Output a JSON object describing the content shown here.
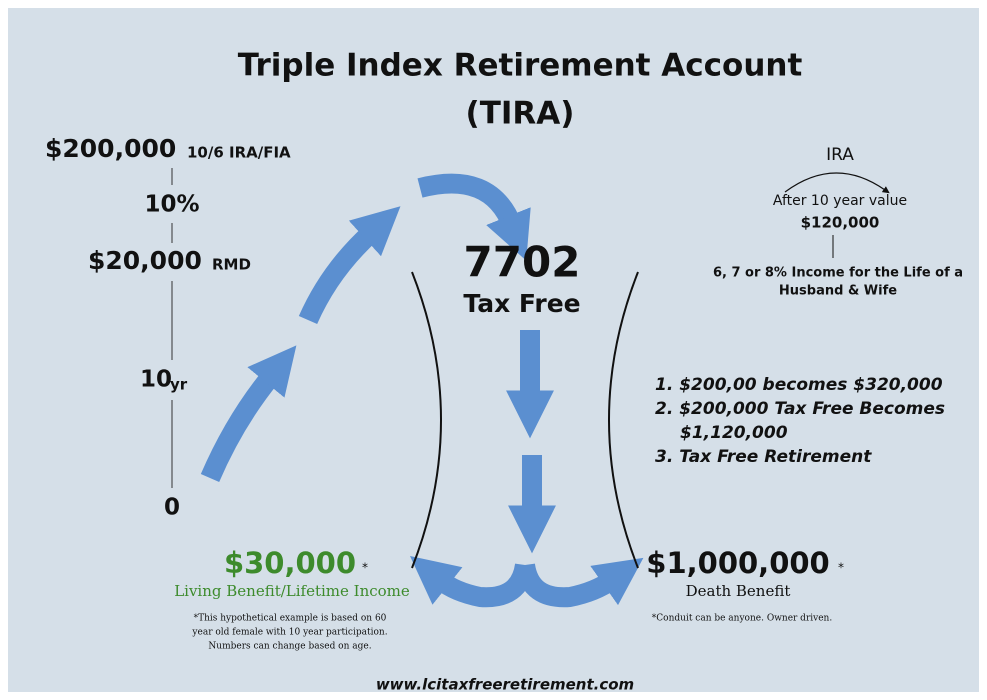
{
  "header": {
    "title": "Triple Index Retirement Account",
    "subtitle": "(TIRA)"
  },
  "scale": {
    "top_amount": "$200,000",
    "top_note": "10/6 IRA/FIA",
    "rate": "10%",
    "rmd_amount": "$20,000",
    "rmd_note": "RMD",
    "years": "10",
    "years_unit": "yr",
    "zero": "0"
  },
  "center": {
    "code": "7702",
    "label": "Tax Free"
  },
  "ira": {
    "title": "IRA",
    "line1": "After 10 year value",
    "amount": "$120,000",
    "income_line1": "6, 7 or 8% Income for the Life of a",
    "income_line2": "Husband & Wife"
  },
  "list": {
    "items": [
      "1. $200,00 becomes $320,000",
      "2. $200,000 Tax Free Becomes",
      "$1,120,000",
      "3. Tax Free Retirement"
    ]
  },
  "living": {
    "amount": "$30,000",
    "mark": "*",
    "label": "Living Benefit/Lifetime Income",
    "notes": [
      "*This hypothetical example is based on 60",
      "year old female with 10 year participation.",
      "Numbers can change based on age."
    ]
  },
  "death": {
    "amount": "$1,000,000",
    "mark": "*",
    "label": "Death Benefit",
    "note": "*Conduit can be anyone. Owner driven."
  },
  "footer": {
    "url": "www.lcitaxfreeretirement.com"
  }
}
